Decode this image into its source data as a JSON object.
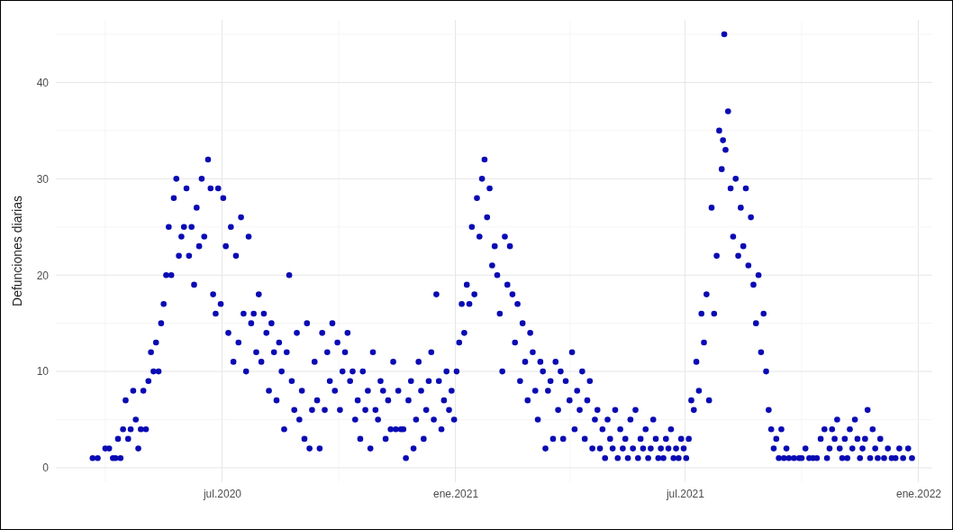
{
  "chart_data": {
    "type": "scatter",
    "ylabel": "Defunciones diarias",
    "marker": "circle",
    "grid": true,
    "xlim": [
      "2020-02-21",
      "2022-01-12"
    ],
    "ylim": [
      -1.5,
      46.5
    ],
    "yticks": [
      0,
      10,
      20,
      30,
      40
    ],
    "xticks": [
      {
        "value": "2020-07-01",
        "label": "jul.2020"
      },
      {
        "value": "2021-01-01",
        "label": "ene.2021"
      },
      {
        "value": "2021-07-01",
        "label": "jul.2021"
      },
      {
        "value": "2022-01-01",
        "label": "ene.2022"
      }
    ],
    "series": [
      {
        "color": "#0a0ab4",
        "x": [
          "2020-03-21",
          "2020-03-25",
          "2020-03-31",
          "2020-04-03",
          "2020-04-06",
          "2020-04-08",
          "2020-04-10",
          "2020-04-12",
          "2020-04-14",
          "2020-04-16",
          "2020-04-18",
          "2020-04-20",
          "2020-04-22",
          "2020-04-24",
          "2020-04-26",
          "2020-04-28",
          "2020-04-30",
          "2020-05-02",
          "2020-05-04",
          "2020-05-06",
          "2020-05-08",
          "2020-05-10",
          "2020-05-12",
          "2020-05-14",
          "2020-05-16",
          "2020-05-18",
          "2020-05-20",
          "2020-05-22",
          "2020-05-24",
          "2020-05-26",
          "2020-05-28",
          "2020-05-30",
          "2020-06-01",
          "2020-06-03",
          "2020-06-05",
          "2020-06-07",
          "2020-06-09",
          "2020-06-11",
          "2020-06-13",
          "2020-06-15",
          "2020-06-17",
          "2020-06-20",
          "2020-06-22",
          "2020-06-24",
          "2020-06-26",
          "2020-06-28",
          "2020-06-30",
          "2020-07-02",
          "2020-07-04",
          "2020-07-06",
          "2020-07-08",
          "2020-07-10",
          "2020-07-12",
          "2020-07-14",
          "2020-07-16",
          "2020-07-18",
          "2020-07-20",
          "2020-07-22",
          "2020-07-24",
          "2020-07-26",
          "2020-07-28",
          "2020-07-30",
          "2020-08-01",
          "2020-08-03",
          "2020-08-05",
          "2020-08-07",
          "2020-08-09",
          "2020-08-11",
          "2020-08-13",
          "2020-08-15",
          "2020-08-17",
          "2020-08-19",
          "2020-08-21",
          "2020-08-23",
          "2020-08-25",
          "2020-08-27",
          "2020-08-29",
          "2020-08-31",
          "2020-09-02",
          "2020-09-04",
          "2020-09-06",
          "2020-09-08",
          "2020-09-10",
          "2020-09-12",
          "2020-09-14",
          "2020-09-16",
          "2020-09-18",
          "2020-09-20",
          "2020-09-22",
          "2020-09-24",
          "2020-09-26",
          "2020-09-28",
          "2020-09-30",
          "2020-10-02",
          "2020-10-04",
          "2020-10-06",
          "2020-10-08",
          "2020-10-10",
          "2020-10-12",
          "2020-10-14",
          "2020-10-16",
          "2020-10-18",
          "2020-10-20",
          "2020-10-22",
          "2020-10-24",
          "2020-10-26",
          "2020-10-28",
          "2020-10-30",
          "2020-11-01",
          "2020-11-03",
          "2020-11-05",
          "2020-11-07",
          "2020-11-09",
          "2020-11-11",
          "2020-11-13",
          "2020-11-15",
          "2020-11-17",
          "2020-11-19",
          "2020-11-21",
          "2020-11-23",
          "2020-11-25",
          "2020-11-27",
          "2020-11-29",
          "2020-12-01",
          "2020-12-03",
          "2020-12-05",
          "2020-12-07",
          "2020-12-09",
          "2020-12-11",
          "2020-12-13",
          "2020-12-15",
          "2020-12-17",
          "2020-12-19",
          "2020-12-21",
          "2020-12-23",
          "2020-12-25",
          "2020-12-27",
          "2020-12-29",
          "2020-12-31",
          "2021-01-02",
          "2021-01-04",
          "2021-01-06",
          "2021-01-08",
          "2021-01-10",
          "2021-01-12",
          "2021-01-14",
          "2021-01-16",
          "2021-01-18",
          "2021-01-20",
          "2021-01-22",
          "2021-01-24",
          "2021-01-26",
          "2021-01-28",
          "2021-01-30",
          "2021-02-01",
          "2021-02-03",
          "2021-02-05",
          "2021-02-07",
          "2021-02-09",
          "2021-02-11",
          "2021-02-13",
          "2021-02-15",
          "2021-02-17",
          "2021-02-19",
          "2021-02-21",
          "2021-02-23",
          "2021-02-25",
          "2021-02-27",
          "2021-03-01",
          "2021-03-03",
          "2021-03-05",
          "2021-03-07",
          "2021-03-09",
          "2021-03-11",
          "2021-03-13",
          "2021-03-15",
          "2021-03-17",
          "2021-03-19",
          "2021-03-21",
          "2021-03-23",
          "2021-03-25",
          "2021-03-27",
          "2021-03-29",
          "2021-04-01",
          "2021-04-03",
          "2021-04-05",
          "2021-04-07",
          "2021-04-09",
          "2021-04-11",
          "2021-04-13",
          "2021-04-15",
          "2021-04-17",
          "2021-04-19",
          "2021-04-21",
          "2021-04-23",
          "2021-04-25",
          "2021-04-27",
          "2021-04-29",
          "2021-05-01",
          "2021-05-03",
          "2021-05-05",
          "2021-05-07",
          "2021-05-09",
          "2021-05-11",
          "2021-05-13",
          "2021-05-15",
          "2021-05-17",
          "2021-05-19",
          "2021-05-21",
          "2021-05-23",
          "2021-05-25",
          "2021-05-27",
          "2021-05-29",
          "2021-05-31",
          "2021-06-02",
          "2021-06-04",
          "2021-06-06",
          "2021-06-08",
          "2021-06-10",
          "2021-06-12",
          "2021-06-14",
          "2021-06-16",
          "2021-06-18",
          "2021-06-20",
          "2021-06-22",
          "2021-06-24",
          "2021-06-26",
          "2021-06-28",
          "2021-06-30",
          "2021-07-02",
          "2021-07-04",
          "2021-07-06",
          "2021-07-08",
          "2021-07-10",
          "2021-07-12",
          "2021-07-14",
          "2021-07-16",
          "2021-07-18",
          "2021-07-20",
          "2021-07-22",
          "2021-07-24",
          "2021-07-26",
          "2021-07-28",
          "2021-07-30",
          "2021-07-31",
          "2021-08-01",
          "2021-08-02",
          "2021-08-04",
          "2021-08-06",
          "2021-08-08",
          "2021-08-10",
          "2021-08-12",
          "2021-08-14",
          "2021-08-16",
          "2021-08-18",
          "2021-08-20",
          "2021-08-22",
          "2021-08-24",
          "2021-08-26",
          "2021-08-28",
          "2021-08-30",
          "2021-09-01",
          "2021-09-03",
          "2021-09-05",
          "2021-09-07",
          "2021-09-09",
          "2021-09-11",
          "2021-09-13",
          "2021-09-15",
          "2021-09-17",
          "2021-09-19",
          "2021-09-21",
          "2021-09-25",
          "2021-09-29",
          "2021-10-01",
          "2021-10-04",
          "2021-10-07",
          "2021-10-10",
          "2021-10-13",
          "2021-10-16",
          "2021-10-19",
          "2021-10-21",
          "2021-10-23",
          "2021-10-25",
          "2021-10-27",
          "2021-10-29",
          "2021-10-31",
          "2021-11-02",
          "2021-11-04",
          "2021-11-06",
          "2021-11-08",
          "2021-11-10",
          "2021-11-12",
          "2021-11-14",
          "2021-11-16",
          "2021-11-18",
          "2021-11-20",
          "2021-11-22",
          "2021-11-24",
          "2021-11-26",
          "2021-11-28",
          "2021-11-30",
          "2021-12-02",
          "2021-12-05",
          "2021-12-08",
          "2021-12-11",
          "2021-12-14",
          "2021-12-17",
          "2021-12-20",
          "2021-12-24",
          "2021-12-27"
        ],
        "values": [
          1,
          1,
          2,
          2,
          1,
          1,
          3,
          1,
          4,
          7,
          3,
          4,
          8,
          5,
          2,
          4,
          8,
          4,
          9,
          12,
          10,
          13,
          10,
          15,
          17,
          20,
          25,
          20,
          28,
          30,
          22,
          24,
          25,
          29,
          22,
          25,
          19,
          27,
          23,
          30,
          24,
          32,
          29,
          18,
          16,
          29,
          17,
          28,
          23,
          14,
          25,
          11,
          22,
          13,
          26,
          16,
          10,
          24,
          15,
          16,
          12,
          18,
          11,
          16,
          14,
          8,
          15,
          12,
          7,
          13,
          10,
          4,
          12,
          20,
          9,
          6,
          14,
          5,
          8,
          3,
          15,
          2,
          6,
          11,
          7,
          2,
          14,
          6,
          12,
          9,
          15,
          8,
          13,
          6,
          10,
          12,
          14,
          9,
          10,
          5,
          7,
          3,
          10,
          6,
          8,
          2,
          12,
          6,
          5,
          9,
          8,
          3,
          7,
          4,
          11,
          4,
          8,
          4,
          4,
          1,
          7,
          9,
          2,
          5,
          11,
          8,
          3,
          6,
          9,
          12,
          5,
          18,
          9,
          4,
          7,
          10,
          6,
          8,
          5,
          10,
          13,
          17,
          14,
          19,
          17,
          25,
          18,
          28,
          24,
          30,
          32,
          26,
          29,
          21,
          23,
          20,
          16,
          10,
          24,
          19,
          23,
          18,
          13,
          17,
          9,
          15,
          11,
          7,
          14,
          12,
          8,
          5,
          11,
          10,
          2,
          8,
          9,
          3,
          11,
          6,
          10,
          3,
          9,
          7,
          12,
          4,
          8,
          6,
          10,
          3,
          7,
          9,
          2,
          5,
          6,
          2,
          4,
          1,
          5,
          3,
          2,
          6,
          1,
          4,
          2,
          3,
          1,
          5,
          2,
          6,
          1,
          3,
          2,
          4,
          1,
          2,
          5,
          3,
          1,
          2,
          1,
          3,
          2,
          4,
          1,
          2,
          1,
          3,
          2,
          1,
          3,
          7,
          6,
          11,
          8,
          16,
          13,
          18,
          7,
          27,
          16,
          22,
          35,
          31,
          34,
          45,
          33,
          37,
          29,
          24,
          30,
          22,
          27,
          23,
          29,
          21,
          26,
          19,
          15,
          20,
          12,
          16,
          10,
          6,
          4,
          2,
          3,
          1,
          4,
          1,
          2,
          1,
          1,
          1,
          1,
          2,
          1,
          1,
          1,
          3,
          4,
          1,
          2,
          4,
          3,
          5,
          2,
          1,
          3,
          1,
          4,
          2,
          5,
          3,
          1,
          2,
          3,
          6,
          1,
          4,
          2,
          1,
          3,
          1,
          2,
          1,
          1,
          2,
          1,
          2,
          1
        ]
      }
    ]
  }
}
